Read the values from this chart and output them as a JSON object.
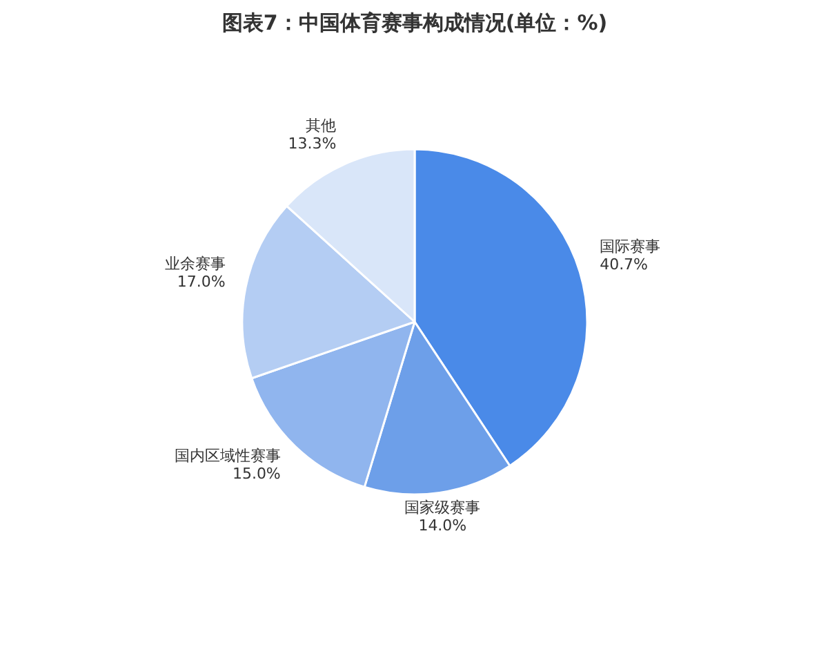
{
  "chart_data": {
    "type": "pie",
    "title": "图表7：中国体育赛事构成情况(单位：%)",
    "categories": [
      "国际赛事",
      "国家级赛事",
      "国内区域性赛事",
      "业余赛事",
      "其他"
    ],
    "values": [
      40.7,
      14.0,
      15.0,
      17.0,
      13.3
    ],
    "colors": [
      "#4a8ae8",
      "#6d9fe9",
      "#90b5ee",
      "#b4cdf3",
      "#d9e6f9"
    ],
    "value_labels": [
      "40.7%",
      "14.0%",
      "15.0%",
      "17.0%",
      "13.3%"
    ]
  }
}
